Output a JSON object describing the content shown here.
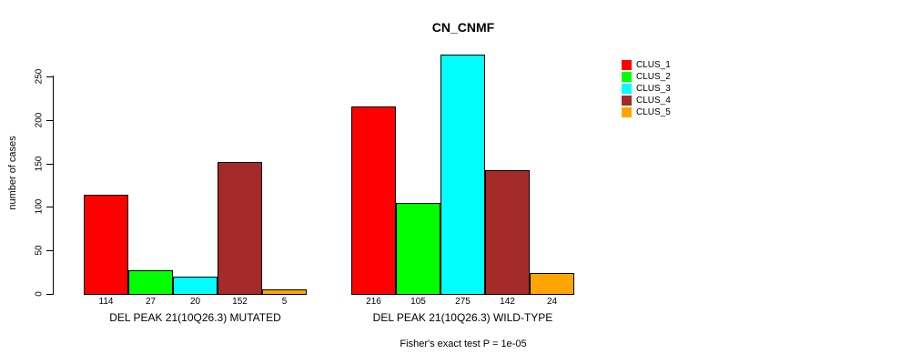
{
  "title": "CN_CNMF",
  "ylabel": "number of cases",
  "footer": "Fisher's exact test P = 1e-05",
  "legend": {
    "entries": [
      {
        "label": "CLUS_1",
        "color": "#FF0000"
      },
      {
        "label": "CLUS_2",
        "color": "#00FF00"
      },
      {
        "label": "CLUS_3",
        "color": "#00FFFF"
      },
      {
        "label": "CLUS_4",
        "color": "#A52A2A"
      },
      {
        "label": "CLUS_5",
        "color": "#FFA500"
      }
    ]
  },
  "chart_data": {
    "type": "bar",
    "title": "CN_CNMF",
    "xlabel": "",
    "ylabel": "number of cases",
    "ylim": [
      0,
      280
    ],
    "yticks": [
      0,
      50,
      100,
      150,
      200,
      250
    ],
    "grid": false,
    "legend_position": "top-right",
    "series_labels": [
      "CLUS_1",
      "CLUS_2",
      "CLUS_3",
      "CLUS_4",
      "CLUS_5"
    ],
    "series_colors": [
      "#FF0000",
      "#00FF00",
      "#00FFFF",
      "#A52A2A",
      "#FFA500"
    ],
    "groups": [
      {
        "label": "DEL PEAK 21(10Q26.3) MUTATED",
        "values": [
          114,
          27,
          20,
          152,
          5
        ]
      },
      {
        "label": "DEL PEAK 21(10Q26.3) WILD-TYPE",
        "values": [
          216,
          105,
          275,
          142,
          24
        ]
      }
    ],
    "annotation": "Fisher's exact test P = 1e-05"
  }
}
